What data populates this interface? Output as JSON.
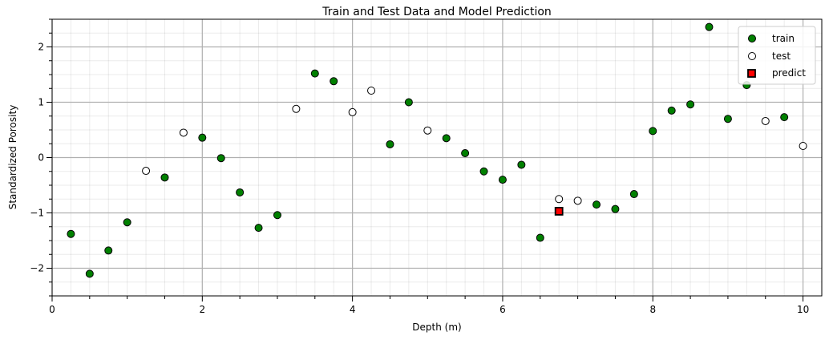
{
  "chart_data": {
    "type": "scatter",
    "title": "Train and Test Data and Model Prediction",
    "xlabel": "Depth (m)",
    "ylabel": "Standardized Porosity",
    "xlim": [
      0,
      10.25
    ],
    "ylim": [
      -2.5,
      2.5
    ],
    "xticks": [
      0,
      2,
      4,
      6,
      8,
      10
    ],
    "yticks": [
      -2,
      -1,
      0,
      1,
      2
    ],
    "grid": true,
    "legend_position": "top-right",
    "series": [
      {
        "name": "train",
        "marker": "circle",
        "color": "#008000",
        "edge": "#000000",
        "points": [
          [
            0.25,
            -1.38
          ],
          [
            0.5,
            -2.1
          ],
          [
            0.75,
            -1.68
          ],
          [
            1.0,
            -1.17
          ],
          [
            1.5,
            -0.36
          ],
          [
            2.0,
            0.36
          ],
          [
            2.25,
            -0.01
          ],
          [
            2.5,
            -0.63
          ],
          [
            2.75,
            -1.27
          ],
          [
            3.0,
            -1.04
          ],
          [
            3.5,
            1.52
          ],
          [
            3.75,
            1.38
          ],
          [
            4.5,
            0.24
          ],
          [
            4.75,
            1.0
          ],
          [
            5.25,
            0.35
          ],
          [
            5.5,
            0.08
          ],
          [
            5.75,
            -0.25
          ],
          [
            6.0,
            -0.4
          ],
          [
            6.25,
            -0.13
          ],
          [
            6.5,
            -1.45
          ],
          [
            7.25,
            -0.85
          ],
          [
            7.5,
            -0.93
          ],
          [
            7.75,
            -0.66
          ],
          [
            8.0,
            0.48
          ],
          [
            8.25,
            0.85
          ],
          [
            8.5,
            0.96
          ],
          [
            8.75,
            2.36
          ],
          [
            9.0,
            0.7
          ],
          [
            9.25,
            1.31
          ],
          [
            9.75,
            0.73
          ]
        ]
      },
      {
        "name": "test",
        "marker": "circle",
        "color": "#ffffff",
        "edge": "#000000",
        "points": [
          [
            1.25,
            -0.24
          ],
          [
            1.75,
            0.45
          ],
          [
            3.25,
            0.88
          ],
          [
            4.0,
            0.82
          ],
          [
            4.25,
            1.21
          ],
          [
            5.0,
            0.49
          ],
          [
            6.75,
            -0.75
          ],
          [
            7.0,
            -0.78
          ],
          [
            9.5,
            0.66
          ],
          [
            10.0,
            0.21
          ]
        ]
      },
      {
        "name": "predict",
        "marker": "square",
        "color": "#ff0000",
        "edge": "#000000",
        "points": [
          [
            6.75,
            -0.97
          ]
        ]
      }
    ]
  }
}
